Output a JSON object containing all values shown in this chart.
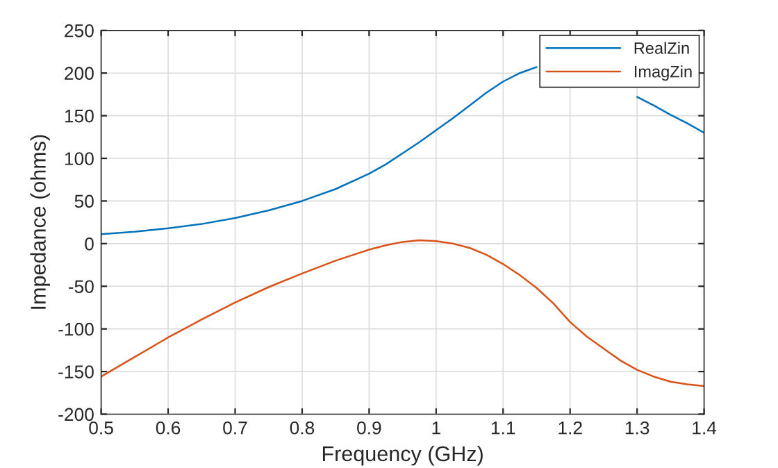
{
  "chart_data": {
    "type": "line",
    "xlabel": "Frequency (GHz)",
    "ylabel": "Impedance (ohms)",
    "xlim": [
      0.5,
      1.4
    ],
    "ylim": [
      -200,
      250
    ],
    "xticks": [
      0.5,
      0.6,
      0.7,
      0.8,
      0.9,
      {
        "value": 1,
        "label": "1"
      },
      1.1,
      1.2,
      1.3,
      1.4
    ],
    "yticks": [
      -200,
      -150,
      -100,
      -50,
      0,
      50,
      100,
      150,
      200,
      250
    ],
    "grid": true,
    "legend": "top right",
    "marker": "none",
    "line_style": "solid",
    "x": [
      0.5,
      0.55,
      0.6,
      0.65,
      0.7,
      0.75,
      0.8,
      0.85,
      0.9,
      0.925,
      0.95,
      0.975,
      1.0,
      1.025,
      1.05,
      1.075,
      1.1,
      1.125,
      1.15,
      1.175,
      1.2,
      1.225,
      1.25,
      1.275,
      1.3,
      1.325,
      1.35,
      1.375,
      1.4
    ],
    "series": [
      {
        "name": "RealZin",
        "color": "#0072bd",
        "values": [
          11,
          14,
          18,
          23,
          30,
          39,
          50,
          64,
          82,
          93,
          106,
          119,
          133,
          147,
          162,
          177,
          190,
          200,
          207,
          null,
          null,
          null,
          null,
          null,
          172,
          162,
          151,
          141,
          130
        ]
      },
      {
        "name": "ImagZin",
        "color": "#d95319",
        "values": [
          -156,
          -133,
          -110,
          -89,
          -69,
          -51,
          -35,
          -20,
          -7,
          -2,
          2,
          4,
          3,
          0,
          -5,
          -13,
          -24,
          -37,
          -52,
          -70,
          -92,
          -109,
          -123,
          -137,
          -148,
          -156,
          -162,
          -165,
          -167
        ]
      }
    ]
  }
}
